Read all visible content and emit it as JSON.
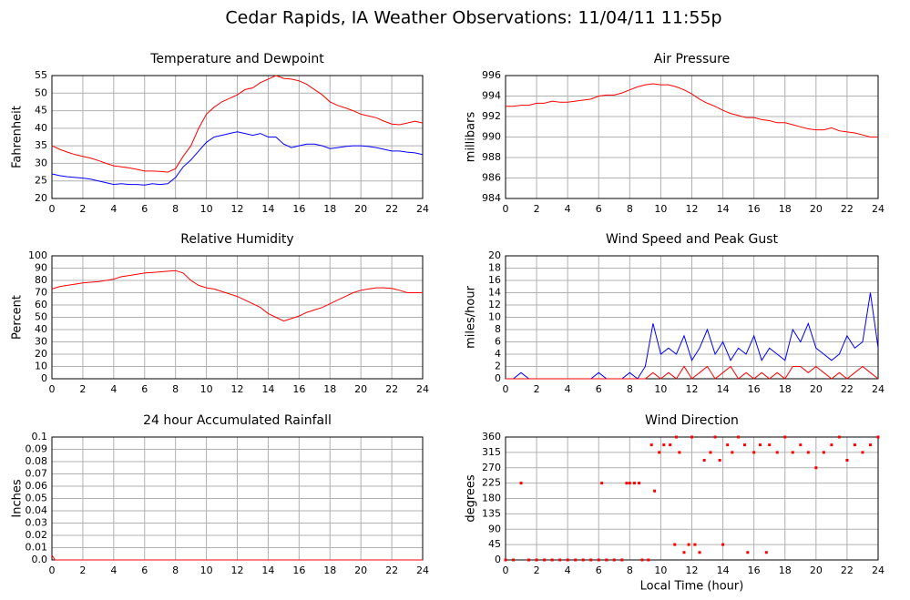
{
  "title": "Cedar Rapids, IA Weather Observations: 11/04/11 11:55p",
  "chart_data": [
    {
      "type": "line",
      "title": "Temperature and Dewpoint",
      "ylabel": "Fahrenheit",
      "x": [
        0,
        0.5,
        1,
        1.5,
        2,
        2.5,
        3,
        3.5,
        4,
        4.5,
        5,
        5.5,
        6,
        6.5,
        7,
        7.5,
        8,
        8.5,
        9,
        9.5,
        10,
        10.5,
        11,
        11.5,
        12,
        12.5,
        13,
        13.5,
        14,
        14.5,
        15,
        15.5,
        16,
        16.5,
        17,
        17.5,
        18,
        18.5,
        19,
        19.5,
        20,
        20.5,
        21,
        21.5,
        22,
        22.5,
        23,
        23.5,
        24
      ],
      "series": [
        {
          "color": "#ff0000",
          "values": [
            35,
            34,
            33.2,
            32.5,
            32,
            31.5,
            30.8,
            30,
            29.3,
            29,
            28.7,
            28.3,
            27.8,
            27.8,
            27.7,
            27.5,
            28.5,
            32,
            35,
            40,
            44,
            46,
            47.5,
            48.5,
            49.5,
            51,
            51.5,
            53,
            54,
            55,
            54.2,
            54,
            53.5,
            52.5,
            51,
            49.5,
            47.5,
            46.5,
            45.8,
            45,
            44,
            43.5,
            43,
            42,
            41.2,
            41,
            41.5,
            42,
            41.5
          ]
        },
        {
          "color": "#0000ff",
          "values": [
            27,
            26.5,
            26.2,
            26,
            25.8,
            25.5,
            25,
            24.5,
            24,
            24.2,
            24,
            24,
            23.8,
            24.2,
            24,
            24.2,
            26,
            29,
            31,
            33.5,
            36,
            37.5,
            38,
            38.5,
            39,
            38.5,
            38,
            38.5,
            37.5,
            37.5,
            35.5,
            34.5,
            35,
            35.5,
            35.5,
            35,
            34.2,
            34.5,
            34.8,
            35,
            35,
            34.8,
            34.5,
            34,
            33.5,
            33.5,
            33.2,
            33,
            32.5
          ]
        }
      ],
      "xlim": [
        0,
        24
      ],
      "xticks": [
        0,
        2,
        4,
        6,
        8,
        10,
        12,
        14,
        16,
        18,
        20,
        22,
        24
      ],
      "ylim": [
        20,
        55
      ],
      "yticks": [
        20,
        25,
        30,
        35,
        40,
        45,
        50,
        55
      ],
      "grid": true
    },
    {
      "type": "line",
      "title": "Air Pressure",
      "ylabel": "millibars",
      "x": [
        0,
        0.5,
        1,
        1.5,
        2,
        2.5,
        3,
        3.5,
        4,
        4.5,
        5,
        5.5,
        6,
        6.5,
        7,
        7.5,
        8,
        8.5,
        9,
        9.5,
        10,
        10.5,
        11,
        11.5,
        12,
        12.5,
        13,
        13.5,
        14,
        14.5,
        15,
        15.5,
        16,
        16.5,
        17,
        17.5,
        18,
        18.5,
        19,
        19.5,
        20,
        20.5,
        21,
        21.5,
        22,
        22.5,
        23,
        23.5,
        24
      ],
      "series": [
        {
          "color": "#ff0000",
          "values": [
            993,
            993,
            993.1,
            993.1,
            993.3,
            993.3,
            993.5,
            993.4,
            993.4,
            993.5,
            993.6,
            993.7,
            994,
            994.1,
            994.1,
            994.3,
            994.6,
            994.9,
            995.1,
            995.2,
            995.1,
            995.1,
            994.9,
            994.6,
            994.2,
            993.7,
            993.3,
            993,
            992.6,
            992.3,
            992.1,
            991.9,
            991.9,
            991.7,
            991.6,
            991.4,
            991.4,
            991.2,
            991,
            990.8,
            990.7,
            990.7,
            990.9,
            990.6,
            990.5,
            990.4,
            990.2,
            990,
            990
          ]
        }
      ],
      "xlim": [
        0,
        24
      ],
      "xticks": [
        0,
        2,
        4,
        6,
        8,
        10,
        12,
        14,
        16,
        18,
        20,
        22,
        24
      ],
      "ylim": [
        984,
        996
      ],
      "yticks": [
        984,
        986,
        988,
        990,
        992,
        994,
        996
      ],
      "grid": true
    },
    {
      "type": "line",
      "title": "Relative Humidity",
      "ylabel": "Percent",
      "x": [
        0,
        0.5,
        1,
        1.5,
        2,
        2.5,
        3,
        3.5,
        4,
        4.5,
        5,
        5.5,
        6,
        6.5,
        7,
        7.5,
        8,
        8.5,
        9,
        9.5,
        10,
        10.5,
        11,
        11.5,
        12,
        12.5,
        13,
        13.5,
        14,
        14.5,
        15,
        15.5,
        16,
        16.5,
        17,
        17.5,
        18,
        18.5,
        19,
        19.5,
        20,
        20.5,
        21,
        21.5,
        22,
        22.5,
        23,
        23.5,
        24
      ],
      "series": [
        {
          "color": "#ff0000",
          "values": [
            73,
            75,
            76,
            77,
            78,
            78.5,
            79,
            80,
            81,
            83,
            84,
            85,
            86,
            86.5,
            87,
            87.5,
            88,
            86,
            80,
            76,
            74,
            73,
            71,
            69,
            67,
            64,
            61,
            58,
            53,
            50,
            47,
            49,
            51,
            54,
            56,
            58,
            61,
            64,
            67,
            70,
            72,
            73,
            74,
            74,
            73.5,
            72,
            70,
            70,
            70
          ]
        }
      ],
      "xlim": [
        0,
        24
      ],
      "xticks": [
        0,
        2,
        4,
        6,
        8,
        10,
        12,
        14,
        16,
        18,
        20,
        22,
        24
      ],
      "ylim": [
        0,
        100
      ],
      "yticks": [
        0,
        10,
        20,
        30,
        40,
        50,
        60,
        70,
        80,
        90,
        100
      ],
      "grid": true
    },
    {
      "type": "line",
      "title": "Wind Speed and Peak Gust",
      "ylabel": "miles/hour",
      "x": [
        0,
        0.5,
        1,
        1.5,
        2,
        2.5,
        3,
        3.5,
        4,
        4.5,
        5,
        5.5,
        6,
        6.5,
        7,
        7.5,
        8,
        8.5,
        9,
        9.5,
        10,
        10.5,
        11,
        11.5,
        12,
        12.5,
        13,
        13.5,
        14,
        14.5,
        15,
        15.5,
        16,
        16.5,
        17,
        17.5,
        18,
        18.5,
        19,
        19.5,
        20,
        20.5,
        21,
        21.5,
        22,
        22.5,
        23,
        23.5,
        24
      ],
      "series": [
        {
          "color": "#0000ff",
          "values": [
            0,
            0,
            1,
            0,
            0,
            0,
            0,
            0,
            0,
            0,
            0,
            0,
            1,
            0,
            0,
            0,
            1,
            0,
            2,
            9,
            4,
            5,
            4,
            7,
            3,
            5,
            8,
            4,
            6,
            3,
            5,
            4,
            7,
            3,
            5,
            4,
            3,
            8,
            6,
            9,
            5,
            4,
            3,
            4,
            7,
            5,
            6,
            14,
            5
          ]
        },
        {
          "color": "#ff0000",
          "values": [
            0,
            0,
            0,
            0,
            0,
            0,
            0,
            0,
            0,
            0,
            0,
            0,
            0,
            0,
            0,
            0,
            0,
            0,
            0,
            1,
            0,
            1,
            0,
            2,
            0,
            1,
            2,
            0,
            1,
            2,
            0,
            1,
            0,
            1,
            0,
            1,
            0,
            2,
            2,
            1,
            2,
            1,
            0,
            1,
            0,
            1,
            2,
            1,
            0
          ]
        }
      ],
      "xlim": [
        0,
        24
      ],
      "xticks": [
        0,
        2,
        4,
        6,
        8,
        10,
        12,
        14,
        16,
        18,
        20,
        22,
        24
      ],
      "ylim": [
        0,
        20
      ],
      "yticks": [
        0,
        2,
        4,
        6,
        8,
        10,
        12,
        14,
        16,
        18,
        20
      ],
      "grid": true
    },
    {
      "type": "line",
      "title": "24 hour Accumulated Rainfall",
      "ylabel": "Inches",
      "x": [
        0,
        0.2,
        24
      ],
      "series": [
        {
          "color": "#ff0000",
          "values": [
            0.004,
            0,
            0
          ]
        }
      ],
      "xlim": [
        0,
        24
      ],
      "xticks": [
        0,
        2,
        4,
        6,
        8,
        10,
        12,
        14,
        16,
        18,
        20,
        22,
        24
      ],
      "ylim": [
        0,
        0.1
      ],
      "yticks": [
        {
          "value": 0,
          "label": "0.0"
        },
        0.01,
        0.02,
        0.03,
        0.04,
        0.05,
        0.06,
        0.07,
        0.08,
        0.09,
        0.1
      ],
      "grid": true
    },
    {
      "type": "scatter",
      "title": "Wind Direction",
      "ylabel": "degrees",
      "xlabel": "Local Time (hour)",
      "x": [
        0,
        0.5,
        1,
        1.5,
        2,
        2.5,
        3,
        3.5,
        4,
        4.5,
        5,
        5.5,
        6,
        6.2,
        6.5,
        7,
        7.5,
        7.8,
        8,
        8.3,
        8.6,
        8.8,
        9.2,
        9.4,
        9.6,
        9.9,
        10.2,
        10.6,
        10.9,
        11,
        11.2,
        11.5,
        11.8,
        12,
        12.2,
        12.5,
        12.8,
        13.2,
        13.5,
        13.8,
        14,
        14.3,
        14.6,
        15,
        15.4,
        15.6,
        16,
        16.4,
        16.8,
        17,
        17.5,
        18,
        18.5,
        19,
        19.5,
        20,
        20.5,
        21,
        21.5,
        22,
        22.5,
        23,
        23.5,
        24
      ],
      "series": [
        {
          "color": "#ff0000",
          "values": [
            0,
            0,
            225,
            0,
            0,
            0,
            0,
            0,
            0,
            0,
            0,
            0,
            0,
            225,
            0,
            0,
            0,
            225,
            225,
            225,
            225,
            0,
            0,
            337,
            202,
            315,
            337,
            337,
            45,
            360,
            315,
            22,
            45,
            360,
            45,
            22,
            292,
            315,
            360,
            292,
            45,
            337,
            315,
            360,
            337,
            22,
            315,
            337,
            22,
            337,
            315,
            360,
            315,
            337,
            315,
            270,
            315,
            337,
            360,
            292,
            337,
            315,
            337,
            360
          ]
        }
      ],
      "xlim": [
        0,
        24
      ],
      "xticks": [
        0,
        2,
        4,
        6,
        8,
        10,
        12,
        14,
        16,
        18,
        20,
        22,
        24
      ],
      "ylim": [
        0,
        360
      ],
      "yticks": [
        0,
        45,
        90,
        135,
        180,
        225,
        270,
        315,
        360
      ],
      "grid": true
    }
  ]
}
